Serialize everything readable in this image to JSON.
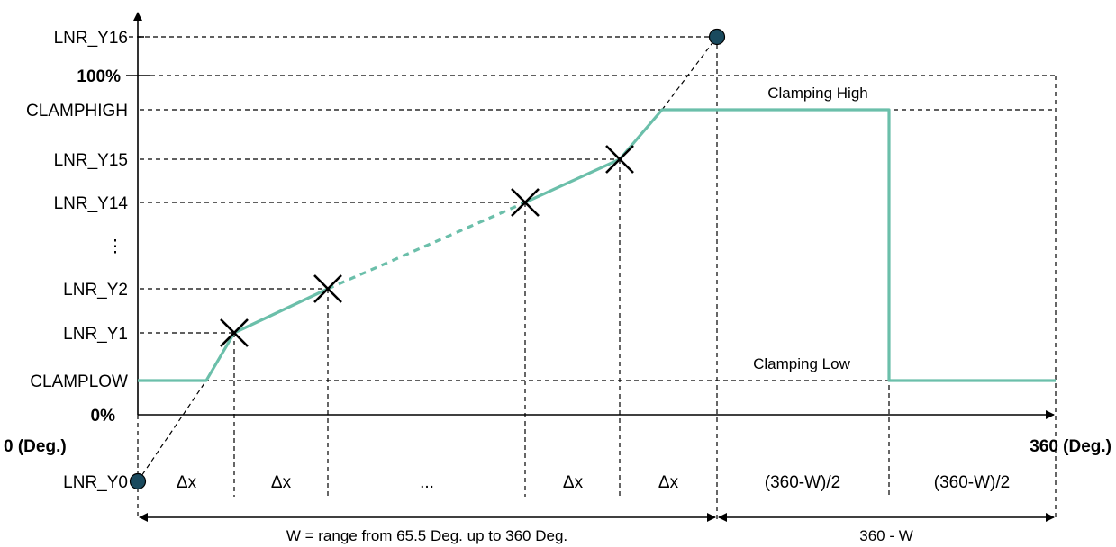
{
  "diagram": {
    "y_labels": {
      "lnr_y16": "LNR_Y16",
      "p100": "100%",
      "clamphigh": "CLAMPHIGH",
      "lnr_y15": "LNR_Y15",
      "lnr_y14": "LNR_Y14",
      "ellipsis": "⋮",
      "lnr_y2": "LNR_Y2",
      "lnr_y1": "LNR_Y1",
      "clamplow": "CLAMPLOW",
      "p0": "0%",
      "lnr_y0": "LNR_Y0"
    },
    "x_labels": {
      "x0": "0 (Deg.)",
      "x360": "360 (Deg.)"
    },
    "annotations": {
      "clamping_high": "Clamping High",
      "clamping_low": "Clamping Low"
    },
    "segments": {
      "dx1": "Δx",
      "dx2": "Δx",
      "dots": "...",
      "dx3": "Δx",
      "dx4": "Δx",
      "half1": "(360-W)/2",
      "half2": "(360-W)/2"
    },
    "dimensions": {
      "w_range": "W = range from 65.5 Deg. up to 360 Deg.",
      "remainder": "360 - W"
    },
    "colors": {
      "curve": "#6bbfaa",
      "endpoint": "#1a4a5e"
    }
  }
}
